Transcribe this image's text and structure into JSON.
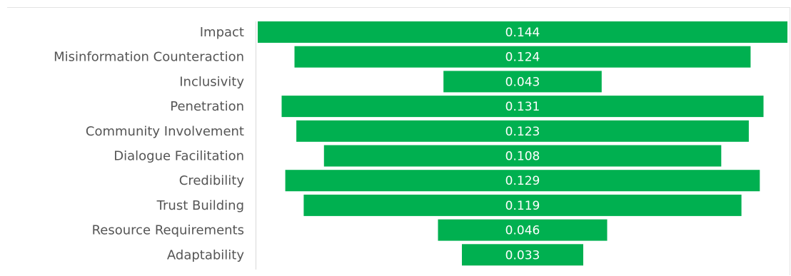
{
  "chart_data": {
    "type": "bar",
    "subtype": "funnel",
    "categories": [
      "Impact",
      "Misinformation Counteraction",
      "Inclusivity",
      "Penetration",
      "Community Involvement",
      "Dialogue Facilitation",
      "Credibility",
      "Trust Building",
      "Resource Requirements",
      "Adaptability"
    ],
    "values": [
      0.144,
      0.124,
      0.043,
      0.131,
      0.123,
      0.108,
      0.129,
      0.119,
      0.046,
      0.033
    ],
    "value_labels": [
      "0.144",
      "0.124",
      "0.043",
      "0.131",
      "0.123",
      "0.108",
      "0.129",
      "0.119",
      "0.046",
      "0.033"
    ],
    "title": "",
    "xlabel": "",
    "ylabel": "",
    "bar_color": "#00b050",
    "label_color": "#555555",
    "value_label_color": "#ffffff",
    "legend": "none",
    "grid": false
  }
}
